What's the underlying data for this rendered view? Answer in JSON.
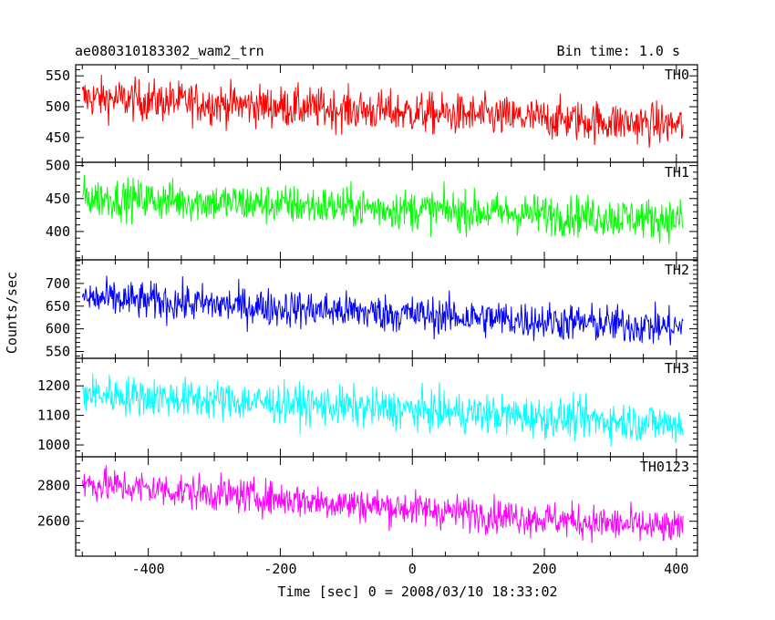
{
  "header": {
    "title_left": "ae080310183302_wam2_trn",
    "title_right": "Bin time: 1.0 s"
  },
  "chart_data": {
    "type": "line",
    "title": "ae080310183302_wam2_trn",
    "subtitle": "Bin time: 1.0 s",
    "xlabel": "Time [sec] 0 = 2008/03/10 18:33:02",
    "ylabel": "Counts/sec",
    "xlim": [
      -510,
      432
    ],
    "x_ticks": [
      -400,
      -200,
      0,
      200,
      400
    ],
    "x_range_data": [
      -500,
      410
    ],
    "bin_time_s": 1.0,
    "grid": false,
    "panels": [
      {
        "name": "TH0",
        "color": "#ff0000",
        "ylim": [
          410,
          568
        ],
        "y_ticks": [
          450,
          500,
          550
        ],
        "trend_start": 515,
        "trend_end": 470,
        "noise": 24,
        "range_low": 430,
        "range_high": 565
      },
      {
        "name": "TH1",
        "color": "#00ff00",
        "ylim": [
          357,
          505
        ],
        "y_ticks": [
          400,
          450,
          500
        ],
        "trend_start": 452,
        "trend_end": 418,
        "noise": 22,
        "range_low": 370,
        "range_high": 500
      },
      {
        "name": "TH2",
        "color": "#0000ff",
        "ylim": [
          535,
          752
        ],
        "y_ticks": [
          550,
          600,
          650,
          700
        ],
        "trend_start": 668,
        "trend_end": 602,
        "noise": 30,
        "range_low": 545,
        "range_high": 745
      },
      {
        "name": "TH3",
        "color": "#00ffff",
        "ylim": [
          960,
          1293
        ],
        "y_ticks": [
          1000,
          1100,
          1200
        ],
        "trend_start": 1175,
        "trend_end": 1070,
        "noise": 48,
        "range_low": 975,
        "range_high": 1285
      },
      {
        "name": "TH0123",
        "color": "#ff00ff",
        "ylim": [
          2405,
          2960
        ],
        "y_ticks": [
          2600,
          2800
        ],
        "trend_start": 2810,
        "trend_end": 2555,
        "noise": 70,
        "range_low": 2415,
        "range_high": 2955
      }
    ]
  }
}
